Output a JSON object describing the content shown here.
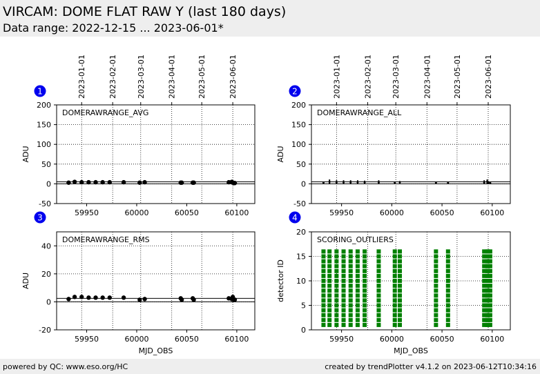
{
  "header": {
    "title": "VIRCAM: DOME FLAT RAW Y (last 180 days)",
    "subtitle": "Data range: 2022-12-15 ... 2023-06-01*"
  },
  "footer": {
    "left": "powered by QC: www.eso.org/HC",
    "right": "created by trendPlotter v4.1.2 on 2023-06-12T10:34:16"
  },
  "colors": {
    "header_bg": "#eeeeee",
    "badge": "#0000ee",
    "points": "#000000",
    "outliers": "#008000"
  },
  "chart_data": [
    {
      "id": "1",
      "type": "scatter",
      "name": "DOMERAWRANGE_AVG",
      "ylabel": "ADU",
      "xlabel": "",
      "xlim": [
        59920,
        60118
      ],
      "ylim": [
        -50,
        200
      ],
      "yticks": [
        -50,
        0,
        50,
        100,
        150,
        200
      ],
      "xticks": [
        59950,
        60000,
        60050,
        60100
      ],
      "show_xtick_labels": true,
      "date_labels": true,
      "hlines": [
        0,
        5
      ],
      "errorbars": false,
      "x": [
        59932,
        59938,
        59945,
        59952,
        59959,
        59966,
        59973,
        59987,
        60003,
        60008,
        60044,
        60045,
        60056,
        60057,
        60092,
        60095,
        60096,
        60097,
        60098
      ],
      "y": [
        3,
        5,
        4,
        4,
        4,
        4,
        4,
        4,
        3,
        4,
        3,
        3,
        3,
        3,
        4,
        5,
        3,
        2,
        2
      ]
    },
    {
      "id": "2",
      "type": "scatter",
      "name": "DOMERAWRANGE_ALL",
      "ylabel": "ADU",
      "xlabel": "",
      "xlim": [
        59920,
        60118
      ],
      "ylim": [
        -50,
        200
      ],
      "yticks": [
        -50,
        0,
        50,
        100,
        150,
        200
      ],
      "xticks": [
        59950,
        60000,
        60050,
        60100
      ],
      "show_xtick_labels": true,
      "date_labels": true,
      "hlines": [
        0,
        5
      ],
      "errorbars": true,
      "x": [
        59932,
        59938,
        59945,
        59952,
        59959,
        59966,
        59973,
        59987,
        60003,
        60008,
        60044,
        60056,
        60092,
        60095,
        60096,
        60098
      ],
      "y": [
        3,
        5,
        4,
        4,
        4,
        4,
        4,
        4,
        3,
        4,
        3,
        3,
        4,
        5,
        3,
        2
      ],
      "err": [
        3,
        6,
        5,
        5,
        5,
        5,
        4,
        5,
        3,
        3,
        3,
        3,
        5,
        6,
        4,
        3
      ]
    },
    {
      "id": "3",
      "type": "scatter",
      "name": "DOMERAWRANGE_RMS",
      "ylabel": "ADU",
      "xlabel": "MJD_OBS",
      "xlim": [
        59920,
        60118
      ],
      "ylim": [
        -20,
        50
      ],
      "yticks": [
        -20,
        0,
        20,
        40
      ],
      "xticks": [
        59950,
        60000,
        60050,
        60100
      ],
      "show_xtick_labels": true,
      "date_labels": false,
      "hlines": [
        0,
        2.5
      ],
      "errorbars": false,
      "x": [
        59932,
        59938,
        59945,
        59952,
        59959,
        59966,
        59973,
        59987,
        60003,
        60008,
        60044,
        60045,
        60056,
        60057,
        60092,
        60095,
        60096,
        60097,
        60098
      ],
      "y": [
        2,
        3.5,
        3.5,
        3,
        3,
        3,
        3,
        3,
        1.5,
        2,
        2.5,
        1.5,
        2.5,
        1.5,
        2.5,
        2,
        3.5,
        1.5,
        1.5
      ]
    },
    {
      "id": "4",
      "type": "scatter",
      "name": "SCORING_OUTLIERS",
      "ylabel": "detector ID",
      "xlabel": "MJD_OBS",
      "xlim": [
        59920,
        60118
      ],
      "ylim": [
        0,
        20
      ],
      "yticks": [
        0,
        5,
        10,
        15,
        20
      ],
      "xticks": [
        59950,
        60000,
        60050,
        60100
      ],
      "show_xtick_labels": true,
      "date_labels": false,
      "hlines": [],
      "errorbars": false,
      "marker": "square",
      "detector_ids": [
        1,
        2,
        3,
        4,
        5,
        6,
        7,
        8,
        9,
        10,
        11,
        12,
        13,
        14,
        15,
        16
      ],
      "x": [
        59932,
        59938,
        59945,
        59952,
        59959,
        59966,
        59973,
        59987,
        60003,
        60008,
        60044,
        60056,
        60092,
        60095,
        60096,
        60098
      ]
    }
  ],
  "date_ticks": [
    {
      "label": "2023-01-01",
      "mjd": 59945
    },
    {
      "label": "2023-02-01",
      "mjd": 59976
    },
    {
      "label": "2023-03-01",
      "mjd": 60004
    },
    {
      "label": "2023-04-01",
      "mjd": 60035
    },
    {
      "label": "2023-05-01",
      "mjd": 60065
    },
    {
      "label": "2023-06-01",
      "mjd": 60096
    }
  ]
}
